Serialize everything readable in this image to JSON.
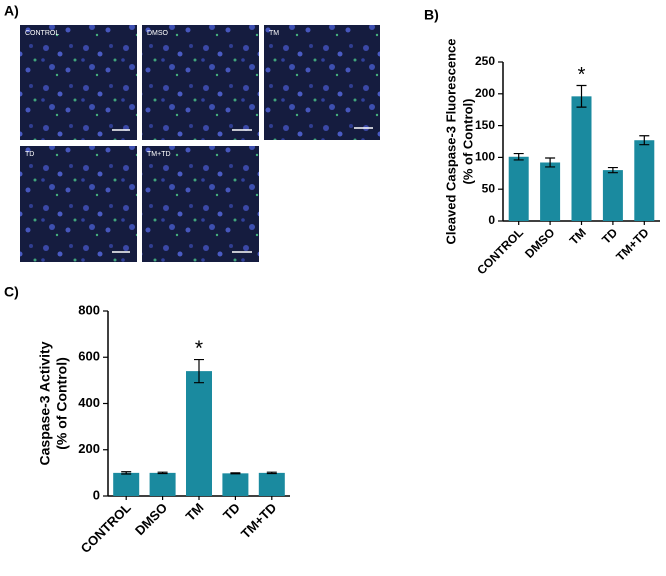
{
  "panel_labels": [
    "A)",
    "B)",
    "C)"
  ],
  "images": [
    {
      "label": "CONTROL"
    },
    {
      "label": "DMSO"
    },
    {
      "label": "TM"
    },
    {
      "label": "TD"
    },
    {
      "label": "TM+TD"
    }
  ],
  "chart_data": [
    {
      "type": "bar",
      "ylabel": [
        "Cleaved Caspase-3 Fluorescence",
        "(% of Control)"
      ],
      "categories": [
        "CONTROL",
        "DMSO",
        "TM",
        "TD",
        "TM+TD"
      ],
      "values": [
        101,
        92,
        196,
        80,
        127
      ],
      "errors": [
        5,
        7,
        17,
        4,
        7
      ],
      "color": "#1a8a9f",
      "ylim": [
        0,
        250
      ],
      "yticks": [
        0,
        50,
        100,
        150,
        200,
        250
      ],
      "annotations": [
        {
          "text": "*",
          "x": "TM"
        }
      ]
    },
    {
      "type": "bar",
      "ylabel": [
        "Caspase-3 Activity",
        "(% of Control)"
      ],
      "categories": [
        "CONTROL",
        "DMSO",
        "TM",
        "TD",
        "TM+TD"
      ],
      "values": [
        100,
        100,
        540,
        98,
        100
      ],
      "errors": [
        5,
        3,
        50,
        2,
        3
      ],
      "color": "#1a8a9f",
      "ylim": [
        0,
        800
      ],
      "yticks": [
        0,
        200,
        400,
        600,
        800
      ],
      "annotations": [
        {
          "text": "*",
          "x": "TM"
        }
      ]
    }
  ]
}
